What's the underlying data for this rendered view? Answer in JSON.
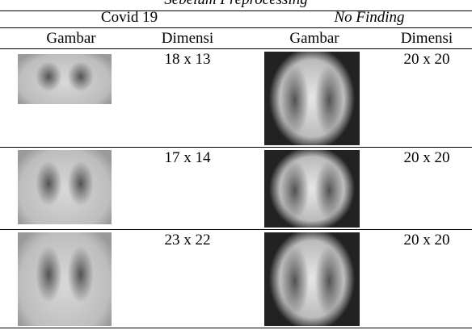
{
  "header": {
    "title": "Sebelum Preprocessing",
    "groups": [
      "Covid 19",
      "No Finding"
    ],
    "columns": [
      "Gambar",
      "Dimensi",
      "Gambar",
      "Dimensi"
    ]
  },
  "table": {
    "rows": [
      [
        "18 x 13",
        "20 x 20"
      ],
      [
        "17 x 14",
        "20 x 20"
      ],
      [
        "23 x 22",
        "20 x 20"
      ]
    ]
  }
}
